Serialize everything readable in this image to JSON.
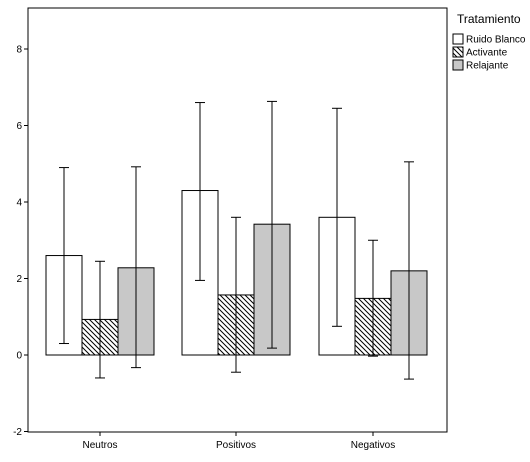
{
  "chart_data": {
    "type": "bar",
    "title": "",
    "xlabel": "",
    "ylabel": "",
    "categories": [
      "Neutros",
      "Positivos",
      "Negativos"
    ],
    "ylim": [
      -2,
      9
    ],
    "yticks": [
      "-2",
      "0",
      "2",
      "4",
      "6",
      "8"
    ],
    "grid": false,
    "error_bars": true,
    "legend": {
      "title": "Tratamiento",
      "placement": "top-right"
    },
    "series": [
      {
        "name": "Ruido Blanco",
        "fill": "#ffffff",
        "pattern": "none",
        "values": [
          2.6,
          4.3,
          3.6
        ],
        "err_low": [
          0.3,
          1.95,
          0.75
        ],
        "err_high": [
          4.9,
          6.6,
          6.45
        ]
      },
      {
        "name": "Activante",
        "fill": "#ffffff",
        "pattern": "diagonal-hatch",
        "values": [
          0.93,
          1.57,
          1.48
        ],
        "err_low": [
          -0.6,
          -0.45,
          -0.03
        ],
        "err_high": [
          2.45,
          3.6,
          3.0
        ]
      },
      {
        "name": "Relajante",
        "fill": "#c8c8c8",
        "pattern": "none",
        "values": [
          2.28,
          3.42,
          2.2
        ],
        "err_low": [
          -0.33,
          0.18,
          -0.63
        ],
        "err_high": [
          4.92,
          6.63,
          5.05
        ]
      }
    ]
  }
}
